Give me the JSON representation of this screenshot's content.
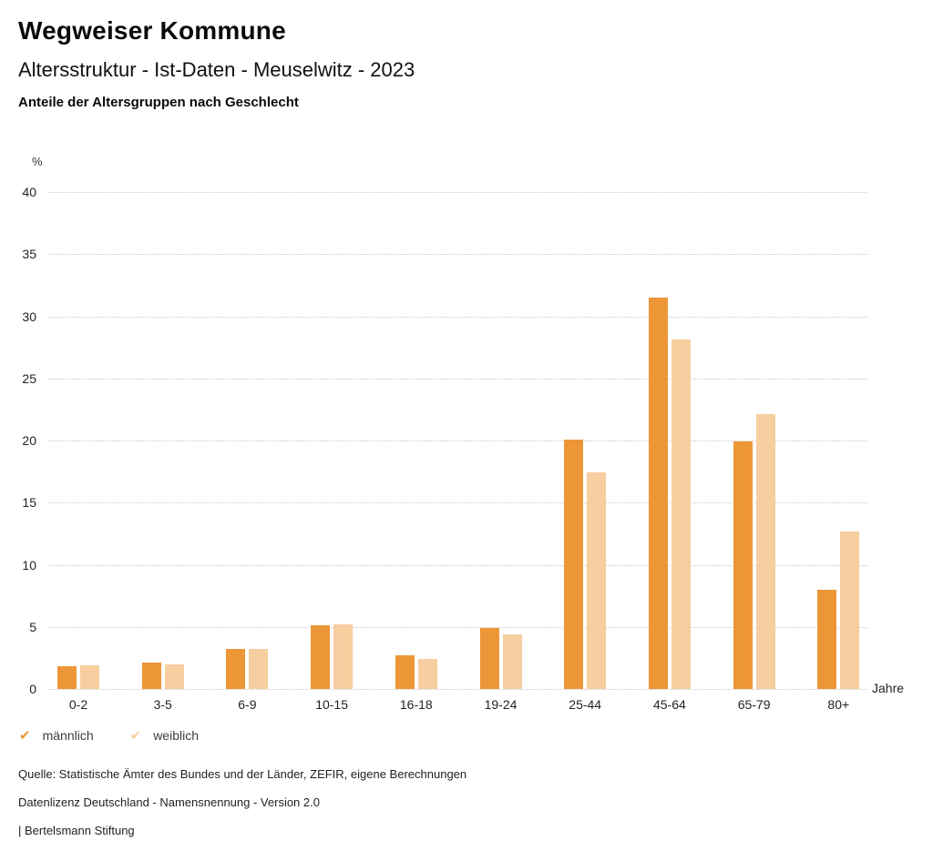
{
  "header": {
    "title": "Wegweiser Kommune",
    "subtitle": "Altersstruktur - Ist-Daten - Meuselwitz - 2023",
    "chart_heading": "Anteile der Altersgruppen nach Geschlecht"
  },
  "chart_data": {
    "type": "bar",
    "title": "Anteile der Altersgruppen nach Geschlecht",
    "categories": [
      "0-2",
      "3-5",
      "6-9",
      "10-15",
      "16-18",
      "19-24",
      "25-44",
      "45-64",
      "65-79",
      "80+"
    ],
    "series": [
      {
        "key": "maennlich",
        "name": "männlich",
        "color": "#EC9637",
        "values": [
          1.8,
          2.1,
          3.2,
          5.1,
          2.7,
          4.9,
          20.1,
          31.5,
          19.9,
          8.0
        ]
      },
      {
        "key": "weiblich",
        "name": "weiblich",
        "color": "#F6CE9F",
        "values": [
          1.9,
          2.0,
          3.2,
          5.2,
          2.4,
          4.4,
          17.4,
          28.1,
          22.1,
          12.7
        ]
      }
    ],
    "ylabel": "%",
    "xlabel": "Jahre",
    "ylim": [
      0,
      40
    ],
    "ytick_step": 5,
    "yticks": [
      0,
      5,
      10,
      15,
      20,
      25,
      30,
      35,
      40
    ],
    "grid": true,
    "legend_position": "bottom"
  },
  "axes": {
    "y_unit": "%",
    "x_unit": "Jahre"
  },
  "legend": [
    {
      "key": "maennlich",
      "label": "männlich",
      "color": "#EC9637",
      "icon": "check"
    },
    {
      "key": "weiblich",
      "label": "weiblich",
      "color": "#F6CE9F",
      "icon": "check"
    }
  ],
  "footer": {
    "source": "Quelle: Statistische Ämter des Bundes und der Länder, ZEFIR, eigene Berechnungen",
    "license": "Datenlizenz Deutschland - Namensnennung - Version 2.0",
    "attribution": "| Bertelsmann Stiftung"
  }
}
